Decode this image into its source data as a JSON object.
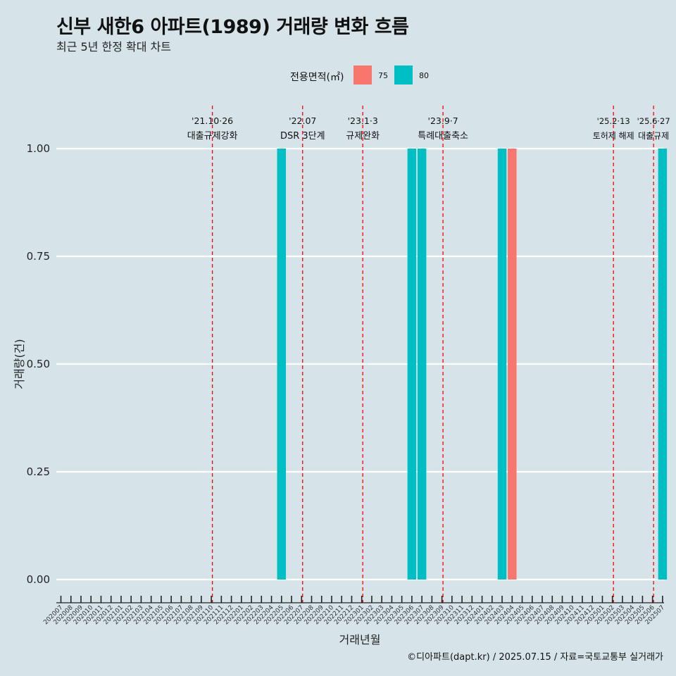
{
  "header": {
    "title": "신부 새한6 아파트(1989) 거래량 변화 흐름",
    "subtitle": "최근 5년 한정 확대 차트"
  },
  "legend": {
    "title": "전용면적(㎡)",
    "items": [
      {
        "label": "75",
        "color": "#f8766d"
      },
      {
        "label": "80",
        "color": "#00bfc4"
      }
    ]
  },
  "caption": "©디아파트(dapt.kr) / 2025.07.15 / 자료=국토교통부 실거래가",
  "chart_data": {
    "type": "bar",
    "xlabel": "거래년월",
    "ylabel": "거래량(건)",
    "ylim": [
      0,
      1
    ],
    "yticks": [
      "0.00",
      "0.25",
      "0.50",
      "0.75",
      "1.00"
    ],
    "grid": true,
    "legend_position": "top",
    "categories": [
      "202007",
      "202008",
      "202009",
      "202010",
      "202011",
      "202012",
      "202101",
      "202102",
      "202103",
      "202104",
      "202105",
      "202106",
      "202107",
      "202108",
      "202109",
      "202110",
      "202111",
      "202112",
      "202201",
      "202202",
      "202203",
      "202204",
      "202205",
      "202206",
      "202207",
      "202208",
      "202209",
      "202210",
      "202211",
      "202212",
      "202301",
      "202302",
      "202303",
      "202304",
      "202305",
      "202306",
      "202307",
      "202308",
      "202309",
      "202310",
      "202311",
      "202312",
      "202401",
      "202402",
      "202403",
      "202404",
      "202405",
      "202406",
      "202407",
      "202408",
      "202409",
      "202410",
      "202411",
      "202412",
      "202501",
      "202502",
      "202503",
      "202504",
      "202505",
      "202506",
      "202507"
    ],
    "series": [
      {
        "name": "75",
        "color": "#f8766d",
        "points": [
          {
            "x": "202404",
            "y": 1
          }
        ]
      },
      {
        "name": "80",
        "color": "#00bfc4",
        "points": [
          {
            "x": "202205",
            "y": 1
          },
          {
            "x": "202306",
            "y": 1
          },
          {
            "x": "202307",
            "y": 1
          },
          {
            "x": "202403",
            "y": 1
          },
          {
            "x": "202507",
            "y": 1
          }
        ]
      }
    ],
    "annotations": [
      {
        "x": "202110",
        "date": "'21.10·26",
        "label": "대출규제강화"
      },
      {
        "x": "202207",
        "date": "'22.07",
        "label": "DSR 3단계"
      },
      {
        "x": "202301",
        "date": "'23.1·3",
        "label": "규제완화"
      },
      {
        "x": "202309",
        "date": "'23.9·7",
        "label": "특례대출축소"
      },
      {
        "x": "202502",
        "date": "'25.2·13",
        "label": "토허제 해제"
      },
      {
        "x": "202506",
        "date": "'25.6·27",
        "label": "대출규제"
      }
    ]
  }
}
